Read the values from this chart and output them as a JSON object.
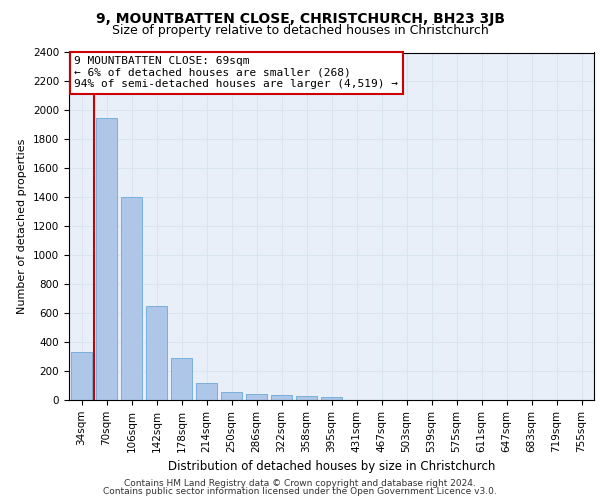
{
  "title1": "9, MOUNTBATTEN CLOSE, CHRISTCHURCH, BH23 3JB",
  "title2": "Size of property relative to detached houses in Christchurch",
  "xlabel": "Distribution of detached houses by size in Christchurch",
  "ylabel": "Number of detached properties",
  "footer1": "Contains HM Land Registry data © Crown copyright and database right 2024.",
  "footer2": "Contains public sector information licensed under the Open Government Licence v3.0.",
  "categories": [
    "34sqm",
    "70sqm",
    "106sqm",
    "142sqm",
    "178sqm",
    "214sqm",
    "250sqm",
    "286sqm",
    "322sqm",
    "358sqm",
    "395sqm",
    "431sqm",
    "467sqm",
    "503sqm",
    "539sqm",
    "575sqm",
    "611sqm",
    "647sqm",
    "683sqm",
    "719sqm",
    "755sqm"
  ],
  "values": [
    330,
    1950,
    1400,
    650,
    290,
    115,
    55,
    42,
    32,
    27,
    20,
    0,
    0,
    0,
    0,
    0,
    0,
    0,
    0,
    0,
    0
  ],
  "bar_color": "#aec6e8",
  "bar_edge_color": "#5a9fd4",
  "annotation_line1": "9 MOUNTBATTEN CLOSE: 69sqm",
  "annotation_line2": "← 6% of detached houses are smaller (268)",
  "annotation_line3": "94% of semi-detached houses are larger (4,519) →",
  "annotation_box_color": "#ffffff",
  "annotation_box_edge_color": "#cc0000",
  "vline_color": "#cc0000",
  "ylim": [
    0,
    2400
  ],
  "yticks": [
    0,
    200,
    400,
    600,
    800,
    1000,
    1200,
    1400,
    1600,
    1800,
    2000,
    2200,
    2400
  ],
  "grid_color": "#d8e4f0",
  "bg_color": "#e8eff8",
  "title1_fontsize": 10,
  "title2_fontsize": 9,
  "xlabel_fontsize": 8.5,
  "ylabel_fontsize": 8,
  "tick_fontsize": 7.5,
  "footer_fontsize": 6.5,
  "annot_fontsize": 8
}
